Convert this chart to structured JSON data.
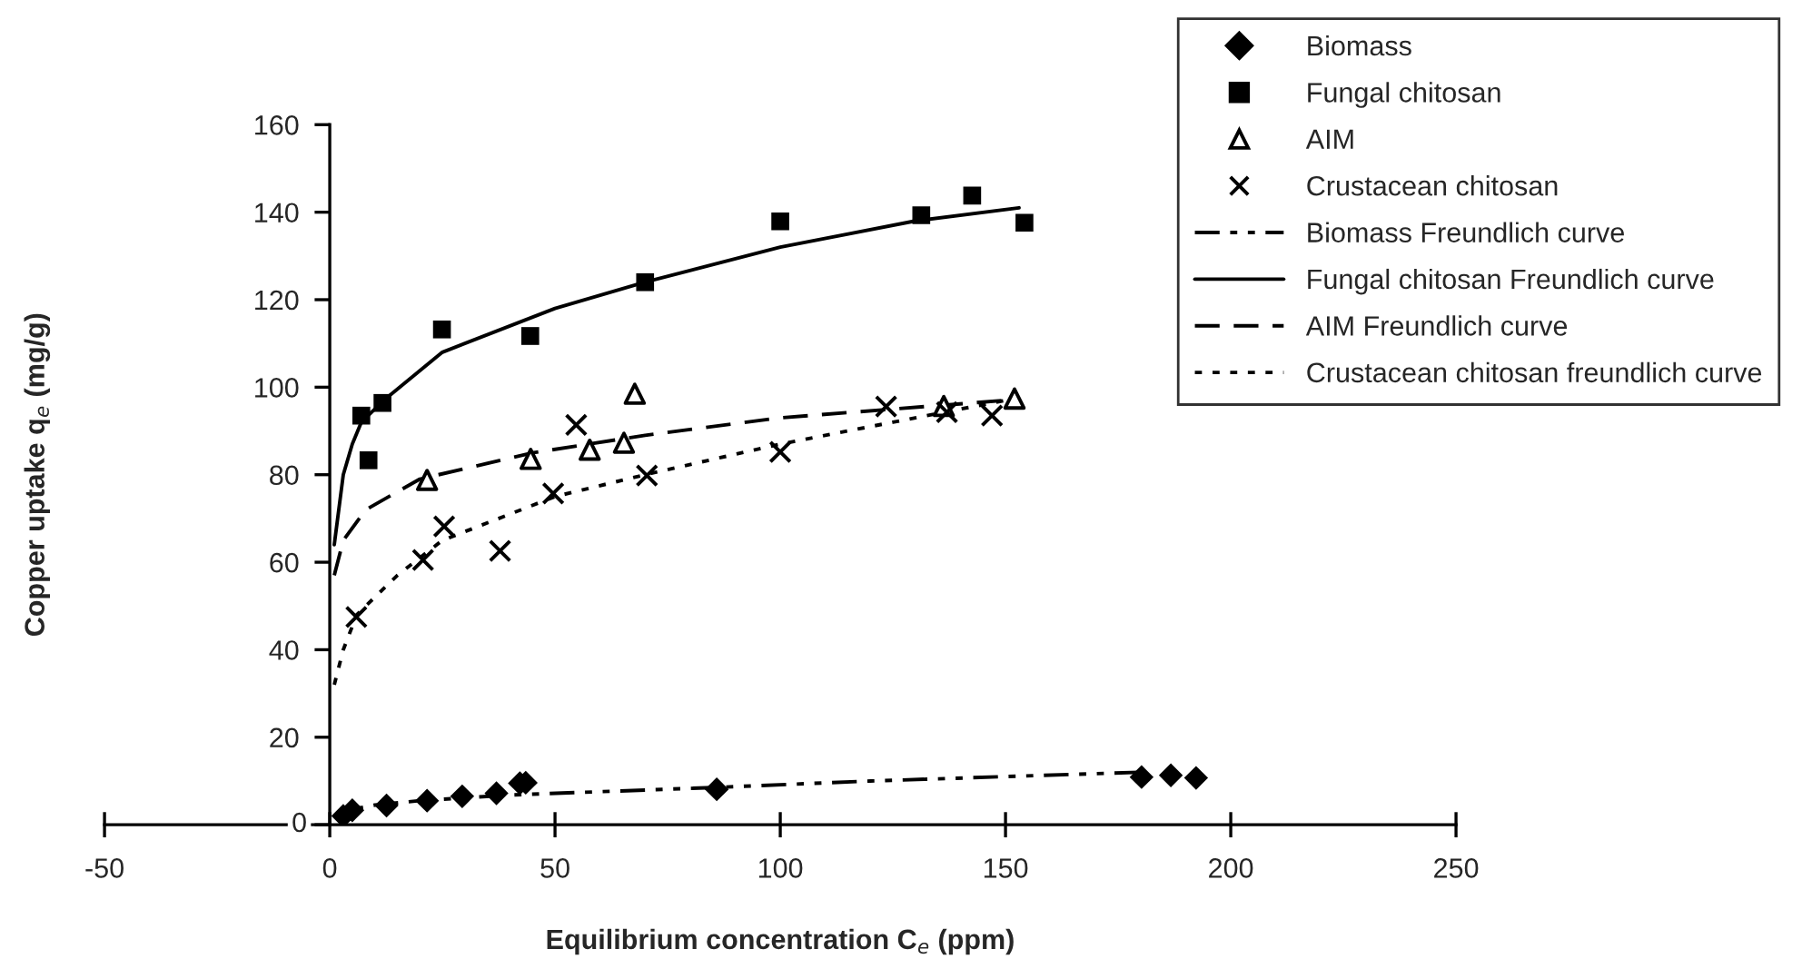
{
  "chart_data": {
    "type": "scatter",
    "xlabel": "Equilibrium concentration C$_{e}$ (ppm)",
    "ylabel": "Copper uptake q$_{e}$ (mg/g)",
    "xlim": [
      -50,
      250
    ],
    "xticks": [
      -50,
      0,
      50,
      100,
      150,
      200,
      250
    ],
    "ylim": [
      0,
      160
    ],
    "yticks": [
      0,
      20,
      40,
      60,
      80,
      100,
      120,
      140,
      160
    ],
    "grid": false,
    "legend": "top right",
    "series": [
      {
        "name": "Biomass",
        "marker": "diamond",
        "color": "#000000",
        "x": [
          3,
          5,
          12.6,
          21.6,
          29.4,
          37,
          42.2,
          43.5,
          85.9,
          180.2,
          186.7,
          192.3
        ],
        "values": [
          2,
          3.3,
          4.4,
          5.5,
          6.5,
          7.2,
          9.5,
          9.6,
          8.1,
          10.9,
          11.3,
          10.7
        ]
      },
      {
        "name": "Fungal chitosan",
        "marker": "square",
        "color": "#000000",
        "x": [
          7,
          8.6,
          11.7,
          24.9,
          44.5,
          70,
          100,
          131.3,
          142.6,
          154.2
        ],
        "values": [
          93.5,
          83.3,
          96.4,
          113.2,
          111.7,
          124,
          137.9,
          139.3,
          143.8,
          137.6
        ]
      },
      {
        "name": "AIM",
        "marker": "triangle",
        "color": "#000000",
        "x": [
          21.6,
          44.6,
          57.7,
          65.3,
          67.7,
          136.3,
          152
        ],
        "values": [
          78.8,
          83.6,
          85.7,
          87.3,
          98.5,
          95.7,
          97.4
        ]
      },
      {
        "name": "Crustacean chitosan",
        "marker": "cross",
        "color": "#000000",
        "x": [
          5.9,
          20.7,
          25.4,
          37.8,
          49.6,
          54.7,
          70.4,
          100,
          123.5,
          137,
          147
        ],
        "values": [
          47.5,
          60.5,
          68.2,
          62.6,
          75.7,
          91.4,
          79.8,
          85.2,
          95.6,
          94.3,
          93.5
        ]
      },
      {
        "name": "Biomass Freundlich curve",
        "type": "line",
        "line_style": "dashdot",
        "marker": "none",
        "color": "#000000",
        "x": [
          2,
          10,
          20,
          40,
          85,
          120,
          180
        ],
        "values": [
          3,
          4.5,
          5.5,
          6.8,
          8.5,
          10,
          12
        ]
      },
      {
        "name": "Fungal chitosan Freundlich curve",
        "type": "line",
        "line_style": "solid",
        "marker": "none",
        "color": "#000000",
        "x": [
          1,
          3,
          5,
          7,
          12,
          25,
          50,
          70,
          100,
          130,
          153
        ],
        "values": [
          64,
          80,
          87,
          92,
          97,
          108,
          118,
          124,
          132,
          138,
          141
        ]
      },
      {
        "name": "AIM Freundlich curve",
        "type": "line",
        "line_style": "dashed",
        "marker": "none",
        "color": "#000000",
        "x": [
          1,
          3,
          8,
          20,
          45,
          70,
          100,
          150
        ],
        "values": [
          57,
          65,
          72,
          79,
          85,
          89,
          93,
          97
        ]
      },
      {
        "name": "Crustacean chitosan freundlich curve",
        "type": "line",
        "line_style": "dotted",
        "marker": "none",
        "color": "#000000",
        "x": [
          1,
          3,
          6,
          15,
          25,
          50,
          70,
          100,
          125,
          150
        ],
        "values": [
          32,
          40,
          48,
          57,
          65,
          75,
          80,
          87,
          92,
          97
        ]
      }
    ]
  }
}
